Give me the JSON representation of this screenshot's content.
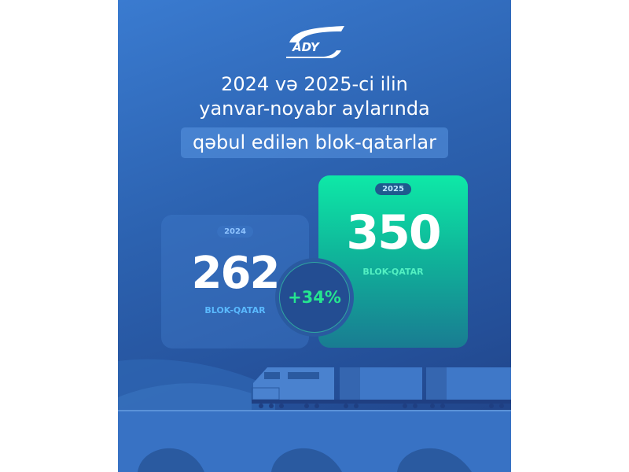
{
  "brand": {
    "logo_text": "ADY"
  },
  "title": {
    "line1": "2024 və 2025-ci ilin",
    "line2": "yanvar-noyabr aylarında",
    "line3": "qəbul edilən blok-qatarlar"
  },
  "cards": [
    {
      "year": "2024",
      "value": "262",
      "unit": "BLOK-QATAR"
    },
    {
      "year": "2025",
      "value": "350",
      "unit": "BLOK-QATAR"
    }
  ],
  "change": {
    "label": "+34%"
  },
  "colors": {
    "background": "#2c62b0",
    "accent_green": "#0ee9a7",
    "change_text": "#25e58f",
    "unit_2024": "#5ab9ff"
  }
}
